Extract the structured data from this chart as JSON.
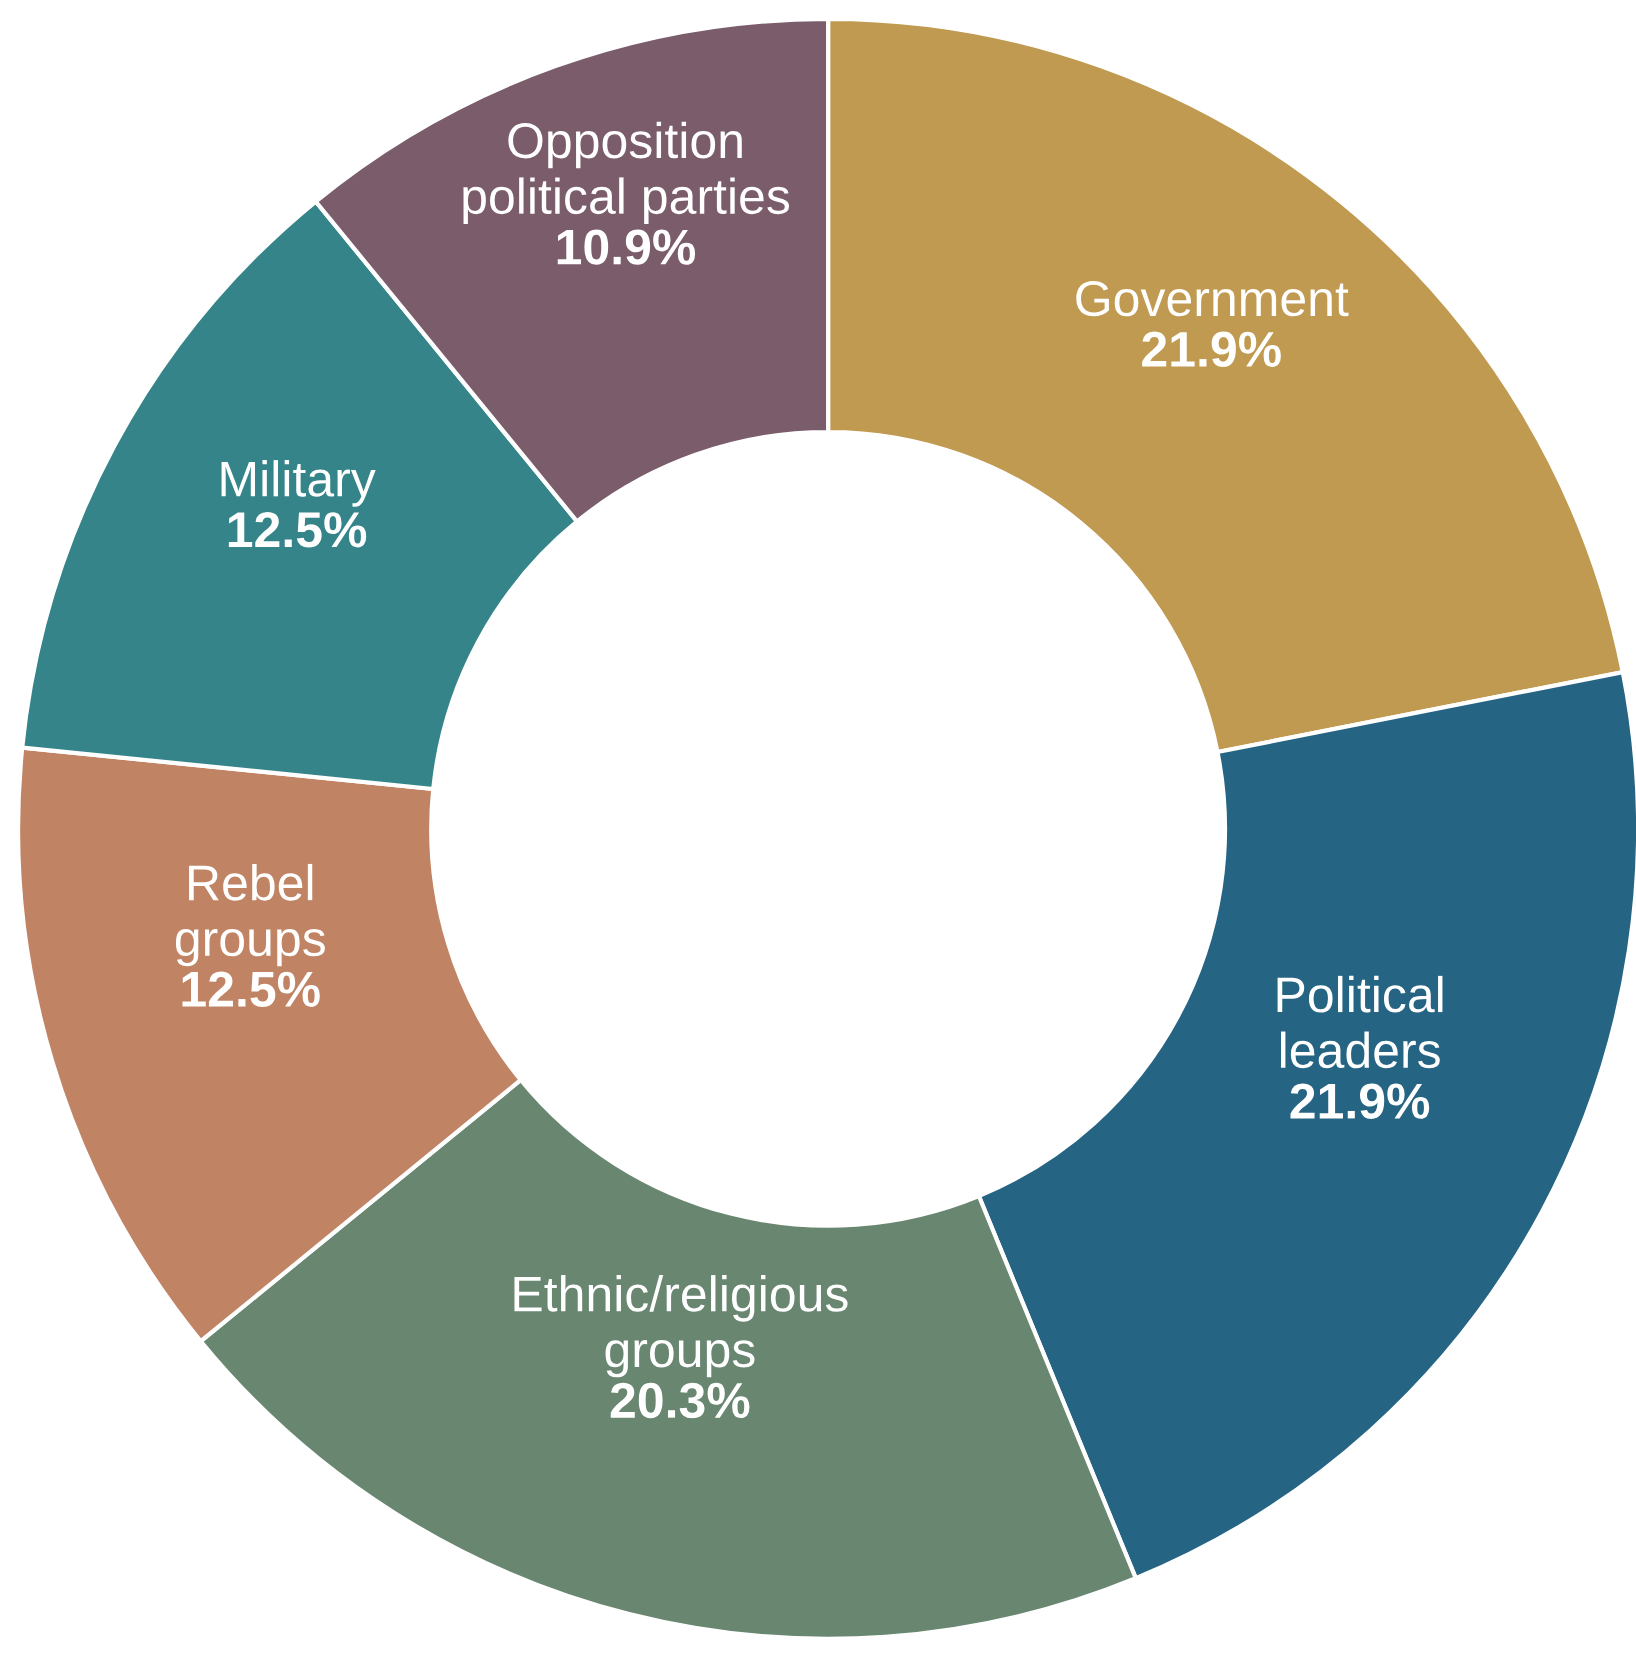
{
  "chart_data": {
    "type": "donut",
    "categories": [
      "Government",
      "Political\nleaders",
      "Ethnic/religious\ngroups",
      "Rebel\ngroups",
      "Military",
      "Opposition\npolitical parties"
    ],
    "values": [
      21.9,
      21.9,
      20.3,
      12.5,
      12.5,
      10.9
    ],
    "value_labels": [
      "21.9%",
      "21.9%",
      "20.3%",
      "12.5%",
      "12.5%",
      "10.9%"
    ],
    "colors": [
      "#c09a50",
      "#266483",
      "#688670",
      "#c08465",
      "#35848a",
      "#7a5c6b"
    ],
    "legend": false
  }
}
